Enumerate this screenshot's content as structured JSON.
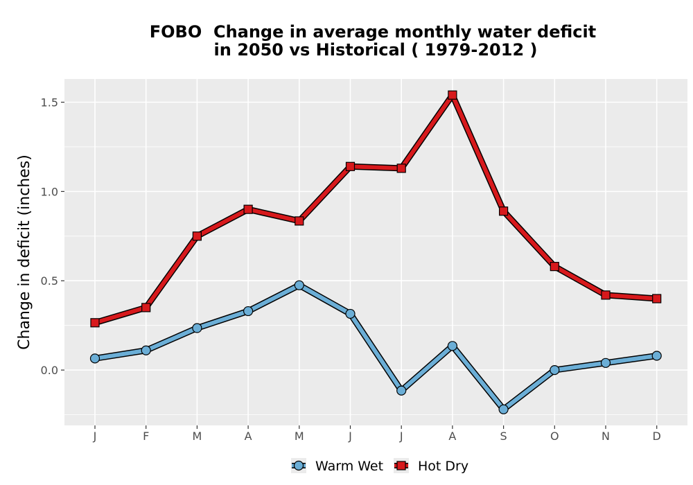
{
  "chart_data": {
    "type": "line",
    "title_line1": "FOBO  Change in average monthly water deficit",
    "title_line2": "in 2050 vs Historical ( 1979-2012 )",
    "xlabel": "",
    "ylabel": "Change in deficit (inches)",
    "categories": [
      "J",
      "F",
      "M",
      "A",
      "M",
      "J",
      "J",
      "A",
      "S",
      "O",
      "N",
      "D"
    ],
    "ylim": [
      -0.31,
      1.63
    ],
    "yticks": [
      0.0,
      0.5,
      1.0,
      1.5
    ],
    "ytick_labels": [
      "0.0",
      "0.5",
      "1.0",
      "1.5"
    ],
    "grid": true,
    "legend_position": "bottom",
    "series": [
      {
        "name": "Warm Wet",
        "color": "#6baed6",
        "marker": "circle",
        "values": [
          0.065,
          0.11,
          0.235,
          0.33,
          0.475,
          0.315,
          -0.115,
          0.135,
          -0.22,
          0.0,
          0.04,
          0.08
        ]
      },
      {
        "name": "Hot Dry",
        "color": "#d7191c",
        "marker": "square",
        "values": [
          0.265,
          0.35,
          0.75,
          0.9,
          0.835,
          1.14,
          1.13,
          1.54,
          0.89,
          0.58,
          0.42,
          0.4
        ]
      }
    ]
  }
}
